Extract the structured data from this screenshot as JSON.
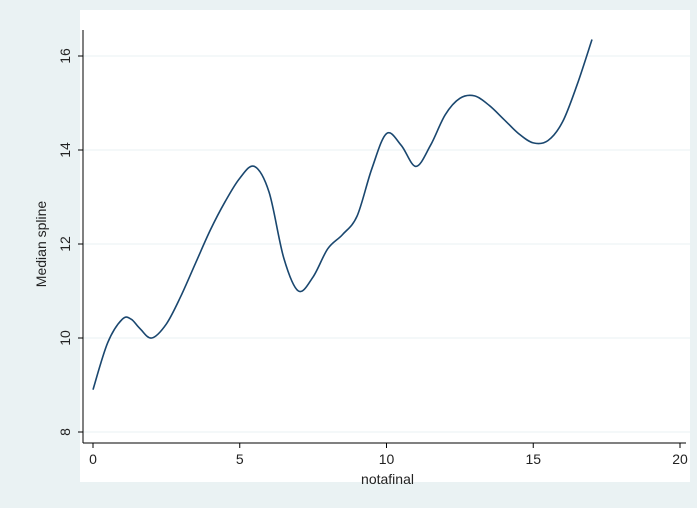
{
  "chart_data": {
    "type": "line",
    "title": "",
    "xlabel": "notafinal",
    "ylabel": "Median spline",
    "xlim": [
      0,
      20
    ],
    "ylim": [
      8,
      16.5
    ],
    "xticks": [
      0,
      5,
      10,
      15,
      20
    ],
    "yticks": [
      8,
      10,
      12,
      14,
      16
    ],
    "grid": "horizontal",
    "legend": "none",
    "colors": {
      "outer": "#eaf2f3",
      "plot": "#ffffff",
      "line": "#1a476f",
      "grid": "#eaf2f3",
      "axis": "#000000"
    },
    "series": [
      {
        "x": [
          0,
          0.5,
          1,
          1.3,
          1.6,
          2,
          2.5,
          3,
          3.5,
          4,
          4.5,
          5,
          5.5,
          6,
          6.5,
          7,
          7.5,
          8,
          8.5,
          9,
          9.5,
          10,
          10.5,
          11,
          11.5,
          12,
          12.5,
          13,
          13.5,
          14,
          14.5,
          15,
          15.5,
          16,
          16.5,
          17
        ],
        "y": [
          8.9,
          9.9,
          10.4,
          10.4,
          10.2,
          10.0,
          10.3,
          10.9,
          11.6,
          12.3,
          12.9,
          13.4,
          13.65,
          13.1,
          11.7,
          11.0,
          11.3,
          11.9,
          12.2,
          12.6,
          13.6,
          14.35,
          14.1,
          13.65,
          14.1,
          14.75,
          15.1,
          15.15,
          14.95,
          14.65,
          14.35,
          14.15,
          14.2,
          14.6,
          15.4,
          16.35
        ]
      }
    ]
  }
}
